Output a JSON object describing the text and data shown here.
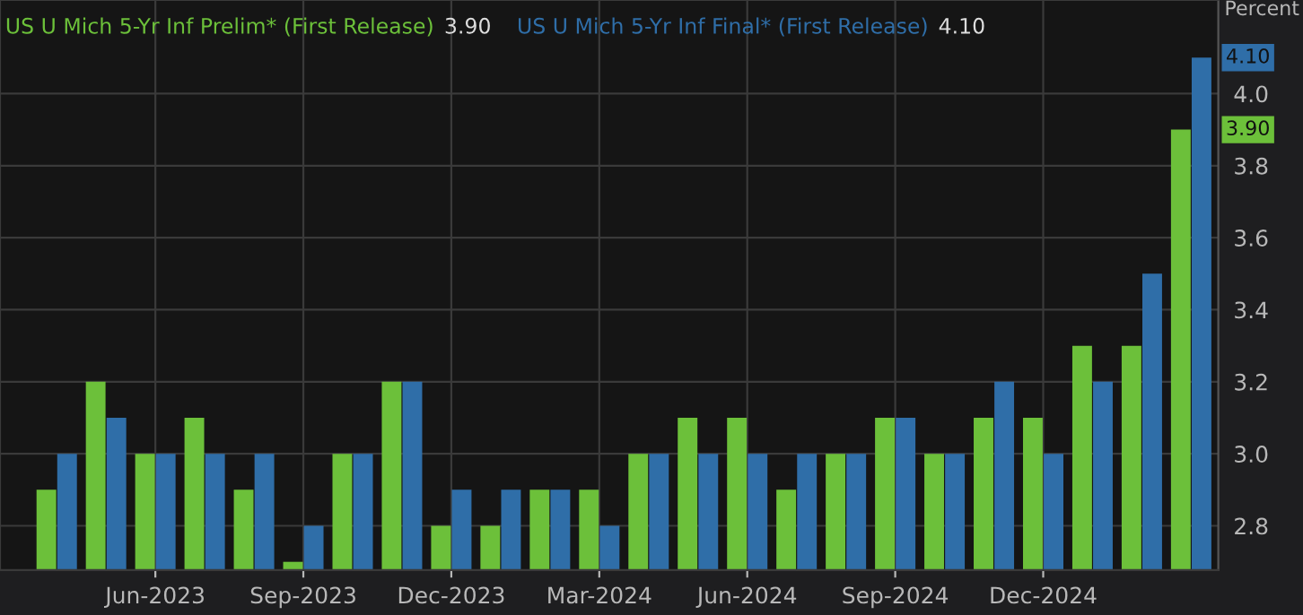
{
  "chart_data": {
    "type": "bar",
    "ylabel": "Percent",
    "categories": [
      null,
      null,
      "Jun-2023",
      null,
      null,
      "Sep-2023",
      null,
      null,
      "Dec-2023",
      null,
      null,
      "Mar-2024",
      null,
      null,
      "Jun-2024",
      null,
      null,
      "Sep-2024",
      null,
      null,
      "Dec-2024",
      null,
      null,
      null
    ],
    "series": [
      {
        "name": "US U Mich 5-Yr Inf Prelim* (First Release)",
        "color": "#6cc03a",
        "values": [
          2.9,
          3.2,
          3.0,
          3.1,
          2.9,
          2.7,
          3.0,
          3.2,
          2.8,
          2.8,
          2.9,
          2.9,
          3.0,
          3.1,
          3.1,
          2.9,
          3.0,
          3.1,
          3.0,
          3.1,
          3.1,
          3.3,
          3.3,
          3.9
        ]
      },
      {
        "name": "US U Mich 5-Yr Inf Final* (First Release)",
        "color": "#2f6ea8",
        "values": [
          3.0,
          3.1,
          3.0,
          3.0,
          3.0,
          2.8,
          3.0,
          3.2,
          2.9,
          2.9,
          2.9,
          2.8,
          3.0,
          3.0,
          3.0,
          3.0,
          3.0,
          3.1,
          3.0,
          3.2,
          3.0,
          3.2,
          3.5,
          4.1
        ]
      }
    ],
    "ylim": [
      2.677,
      4.26
    ],
    "yticks": [
      {
        "value": 2.8,
        "label": "2.8"
      },
      {
        "value": 3.0,
        "label": "3.0"
      },
      {
        "value": 3.2,
        "label": "3.2"
      },
      {
        "value": 3.4,
        "label": "3.4"
      },
      {
        "value": 3.6,
        "label": "3.6"
      },
      {
        "value": 3.8,
        "label": "3.8"
      },
      {
        "value": 4.0,
        "label": "4.0"
      }
    ],
    "annotations": [
      "3.90",
      "4.10",
      {
        "text": "3.90",
        "y": 3.9
      },
      {
        "text": "4.10",
        "y": 4.1
      }
    ],
    "grid": true,
    "legend": "top left"
  }
}
